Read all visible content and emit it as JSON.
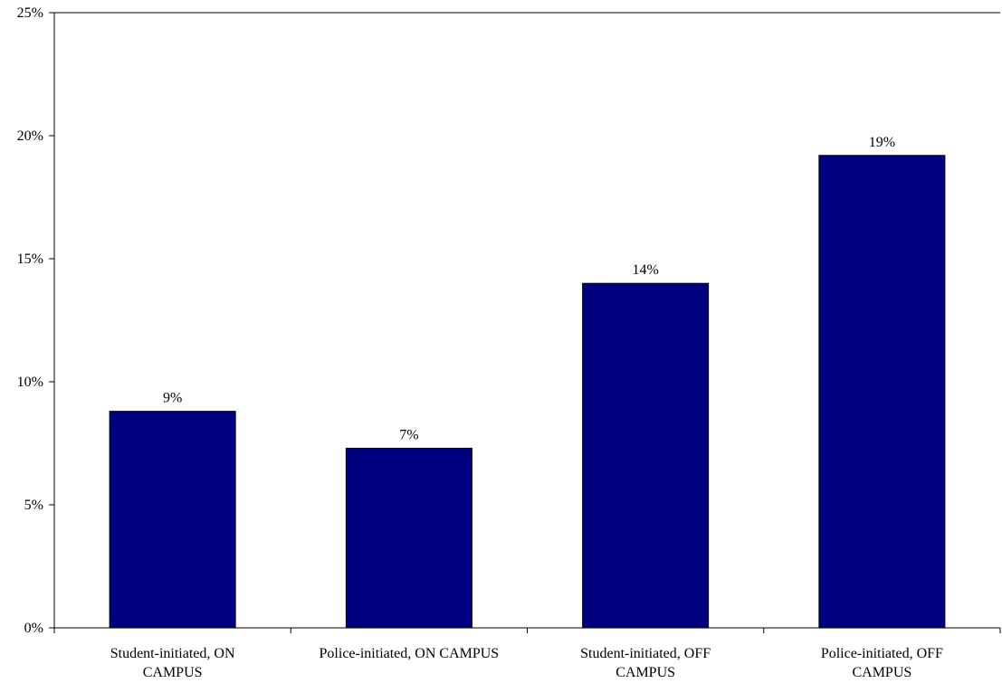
{
  "chart_data": {
    "type": "bar",
    "categories": [
      [
        "Student-initiated, ON",
        "CAMPUS"
      ],
      [
        "Police-initiated, ON CAMPUS"
      ],
      [
        "Student-initiated, OFF",
        "CAMPUS"
      ],
      [
        "Police-initiated, OFF",
        "CAMPUS"
      ]
    ],
    "values": [
      8.8,
      7.3,
      14.0,
      19.2
    ],
    "data_labels": [
      "9%",
      "7%",
      "14%",
      "19%"
    ],
    "ylim": [
      0,
      25
    ],
    "yticks": [
      0,
      5,
      10,
      15,
      20,
      25
    ],
    "ytick_labels": [
      "0%",
      "5%",
      "10%",
      "15%",
      "20%",
      "25%"
    ],
    "grid": false,
    "legend": "none",
    "colors": {
      "bar_fill": "#000080",
      "bar_stroke": "#000000",
      "axis": "#000000"
    }
  }
}
